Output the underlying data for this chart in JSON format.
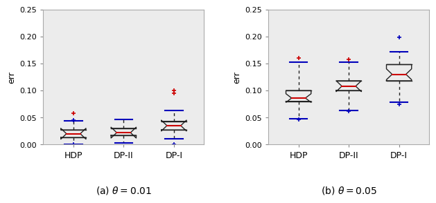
{
  "plot1": {
    "title": "(a) $\\theta = 0.01$",
    "ylabel": "err",
    "ylim": [
      0,
      0.25
    ],
    "yticks": [
      0,
      0.05,
      0.1,
      0.15,
      0.2,
      0.25
    ],
    "categories": [
      "HDP",
      "DP-II",
      "DP-I"
    ],
    "boxes": [
      {
        "med": 0.02,
        "q1": 0.013,
        "q3": 0.027,
        "whislo": 0.0,
        "whishi": 0.044,
        "notch_lo": 0.01,
        "notch_hi": 0.03,
        "fliers_blue": [
          0.0,
          0.045
        ],
        "fliers_red": [
          0.058
        ]
      },
      {
        "med": 0.022,
        "q1": 0.017,
        "q3": 0.03,
        "whislo": 0.003,
        "whishi": 0.047,
        "notch_lo": 0.012,
        "notch_hi": 0.032,
        "fliers_blue": [],
        "fliers_red": []
      },
      {
        "med": 0.035,
        "q1": 0.027,
        "q3": 0.043,
        "whislo": 0.01,
        "whishi": 0.063,
        "notch_lo": 0.025,
        "notch_hi": 0.045,
        "fliers_blue": [
          0.0
        ],
        "fliers_red": [
          0.095,
          0.1
        ]
      }
    ]
  },
  "plot2": {
    "title": "(b) $\\theta = 0.05$",
    "ylabel": "err",
    "ylim": [
      0,
      0.25
    ],
    "yticks": [
      0,
      0.05,
      0.1,
      0.15,
      0.2,
      0.25
    ],
    "categories": [
      "HDP",
      "DP-II",
      "DP-I"
    ],
    "boxes": [
      {
        "med": 0.086,
        "q1": 0.08,
        "q3": 0.1,
        "whislo": 0.048,
        "whishi": 0.152,
        "notch_lo": 0.078,
        "notch_hi": 0.094,
        "fliers_blue": [
          0.047
        ],
        "fliers_red": [
          0.16
        ]
      },
      {
        "med": 0.108,
        "q1": 0.1,
        "q3": 0.118,
        "whislo": 0.063,
        "whishi": 0.152,
        "notch_lo": 0.098,
        "notch_hi": 0.118,
        "fliers_blue": [
          0.062
        ],
        "fliers_red": [
          0.158
        ]
      },
      {
        "med": 0.13,
        "q1": 0.118,
        "q3": 0.148,
        "whislo": 0.078,
        "whishi": 0.172,
        "notch_lo": 0.12,
        "notch_hi": 0.14,
        "fliers_blue": [
          0.075,
          0.198
        ],
        "fliers_red": []
      }
    ]
  },
  "box_color": "#222222",
  "median_color": "#cc0000",
  "whisker_color": "#222222",
  "flier_blue": "#0000bb",
  "flier_red": "#cc0000",
  "bg_color": "#ececec",
  "cap_color": "#0000bb"
}
